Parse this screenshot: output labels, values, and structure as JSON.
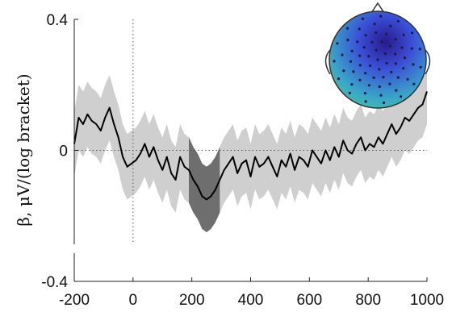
{
  "chart_data": {
    "type": "line",
    "title": "",
    "xlabel": "",
    "ylabel": "β, μV/(log bracket)",
    "xlim": [
      -200,
      1000
    ],
    "ylim": [
      -0.4,
      0.4
    ],
    "x_ticks": [
      -200,
      0,
      200,
      400,
      600,
      800,
      1000
    ],
    "x_tick_labels": [
      "-200",
      "0",
      "200",
      "400",
      "600",
      "800",
      "1000"
    ],
    "y_ticks": [
      -0.4,
      0,
      0.4
    ],
    "y_tick_labels": [
      "-0.4",
      "0",
      "0.4"
    ],
    "zero_reference_lines": true,
    "significant_window": [
      180,
      300
    ],
    "series": [
      {
        "x": [
          -200,
          -185,
          -170,
          -155,
          -140,
          -125,
          -110,
          -95,
          -80,
          -65,
          -50,
          -35,
          -20,
          -5,
          10,
          25,
          40,
          55,
          70,
          85,
          100,
          115,
          130,
          145,
          160,
          175,
          190,
          205,
          220,
          235,
          250,
          265,
          280,
          295,
          310,
          325,
          340,
          355,
          370,
          385,
          400,
          415,
          430,
          445,
          460,
          475,
          490,
          505,
          520,
          535,
          550,
          565,
          580,
          595,
          610,
          625,
          640,
          655,
          670,
          685,
          700,
          715,
          730,
          745,
          760,
          775,
          790,
          805,
          820,
          835,
          850,
          865,
          880,
          895,
          910,
          925,
          940,
          955,
          970,
          985,
          1000
        ],
        "values": [
          0.02,
          0.1,
          0.08,
          0.11,
          0.09,
          0.08,
          0.06,
          0.1,
          0.13,
          0.08,
          0.04,
          -0.02,
          -0.05,
          -0.04,
          -0.03,
          -0.01,
          0.02,
          -0.02,
          0.01,
          -0.03,
          -0.06,
          -0.02,
          -0.07,
          -0.09,
          -0.02,
          -0.05,
          -0.06,
          -0.09,
          -0.11,
          -0.14,
          -0.15,
          -0.14,
          -0.12,
          -0.09,
          -0.06,
          -0.04,
          -0.02,
          -0.07,
          -0.04,
          -0.03,
          -0.08,
          -0.02,
          -0.05,
          -0.04,
          -0.02,
          -0.05,
          -0.08,
          -0.03,
          -0.05,
          -0.01,
          -0.06,
          -0.02,
          -0.03,
          -0.05,
          0.0,
          -0.02,
          -0.04,
          0.0,
          -0.03,
          0.01,
          -0.02,
          0.03,
          0.0,
          -0.01,
          0.02,
          0.04,
          0.0,
          0.02,
          0.01,
          0.04,
          0.02,
          0.05,
          0.08,
          0.05,
          0.07,
          0.1,
          0.09,
          0.11,
          0.13,
          0.14,
          0.18
        ],
        "ci_halfwidth": [
          0.1,
          0.1,
          0.1,
          0.1,
          0.1,
          0.1,
          0.1,
          0.1,
          0.1,
          0.1,
          0.1,
          0.1,
          0.1,
          0.1,
          0.1,
          0.1,
          0.1,
          0.1,
          0.1,
          0.1,
          0.1,
          0.1,
          0.1,
          0.1,
          0.1,
          0.1,
          0.1,
          0.1,
          0.1,
          0.1,
          0.1,
          0.1,
          0.1,
          0.1,
          0.1,
          0.1,
          0.1,
          0.1,
          0.1,
          0.1,
          0.1,
          0.1,
          0.1,
          0.1,
          0.1,
          0.1,
          0.1,
          0.1,
          0.1,
          0.1,
          0.1,
          0.1,
          0.1,
          0.1,
          0.1,
          0.1,
          0.1,
          0.1,
          0.1,
          0.1,
          0.1,
          0.1,
          0.1,
          0.1,
          0.1,
          0.1,
          0.1,
          0.1,
          0.1,
          0.1,
          0.1,
          0.1,
          0.1,
          0.1,
          0.1,
          0.1,
          0.1,
          0.1,
          0.1,
          0.1,
          0.1
        ]
      }
    ]
  },
  "colors": {
    "line": "#000000",
    "ci_band": "#cfcfcf",
    "significant_band": "#6e6e6e",
    "axis": "#222222",
    "reference": "#555555",
    "topo_outline": "#333333",
    "topo_sensor": "#1a1a4a",
    "topo_high": "#2a1a8c",
    "topo_mid": "#3a4fd6",
    "topo_low": "#3aa6c8",
    "topo_lowest": "#45c7a0"
  },
  "inset": {
    "type": "scalp topography",
    "sensor_count": 64
  }
}
